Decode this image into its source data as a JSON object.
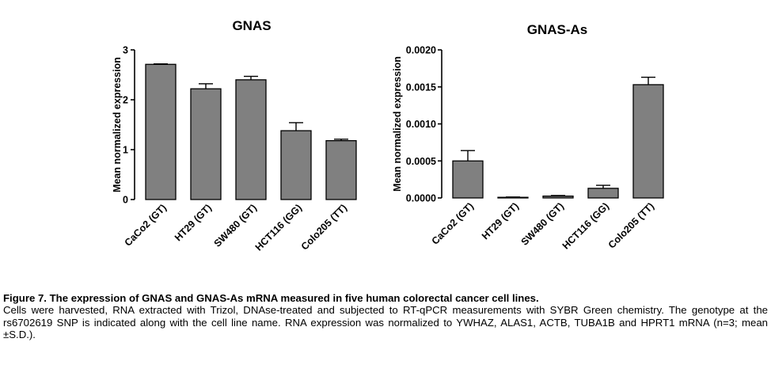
{
  "chart_data": [
    {
      "type": "bar",
      "title": "GNAS",
      "ylabel": "Mean normalized expression",
      "xlabel": "",
      "categories": [
        "CaCo2 (GT)",
        "HT29 (GT)",
        "SW480 (GT)",
        "HCT116 (GG)",
        "Colo205 (TT)"
      ],
      "values": [
        2.71,
        2.22,
        2.4,
        1.38,
        1.18
      ],
      "errors": [
        0.01,
        0.1,
        0.07,
        0.16,
        0.03
      ],
      "ylim": [
        0,
        3
      ],
      "yticks": [
        "0",
        "1",
        "2",
        "3"
      ],
      "ytick_values": [
        0,
        1,
        2,
        3
      ],
      "bar_color": "#808080",
      "grid": false
    },
    {
      "type": "bar",
      "title": "GNAS-As",
      "ylabel": "Mean normalized expression",
      "xlabel": "",
      "categories": [
        "CaCo2 (GT)",
        "HT29 (GT)",
        "SW480 (GT)",
        "HCT116 (GG)",
        "Colo205 (TT)"
      ],
      "values": [
        0.0005,
        8e-06,
        2.5e-05,
        0.00013,
        0.00153
      ],
      "errors": [
        0.00014,
        5e-06,
        8e-06,
        4e-05,
        0.0001
      ],
      "ylim": [
        0,
        0.002
      ],
      "yticks": [
        "0.0000",
        "0.0005",
        "0.0010",
        "0.0015",
        "0.0020"
      ],
      "ytick_values": [
        0,
        0.0005,
        0.001,
        0.0015,
        0.002
      ],
      "bar_color": "#808080",
      "grid": false
    }
  ],
  "caption": {
    "title": "Figure 7. The expression of GNAS and GNAS-As mRNA measured in five human colorectal cancer cell lines.",
    "body": "Cells were harvested, RNA extracted with Trizol, DNAse-treated and subjected to RT-qPCR measurements with SYBR Green chemistry. The genotype at the rs6702619 SNP is indicated along with the cell line name. RNA expression was normalized to YWHAZ, ALAS1, ACTB, TUBA1B and HPRT1 mRNA (n=3; mean ±S.D.)."
  }
}
